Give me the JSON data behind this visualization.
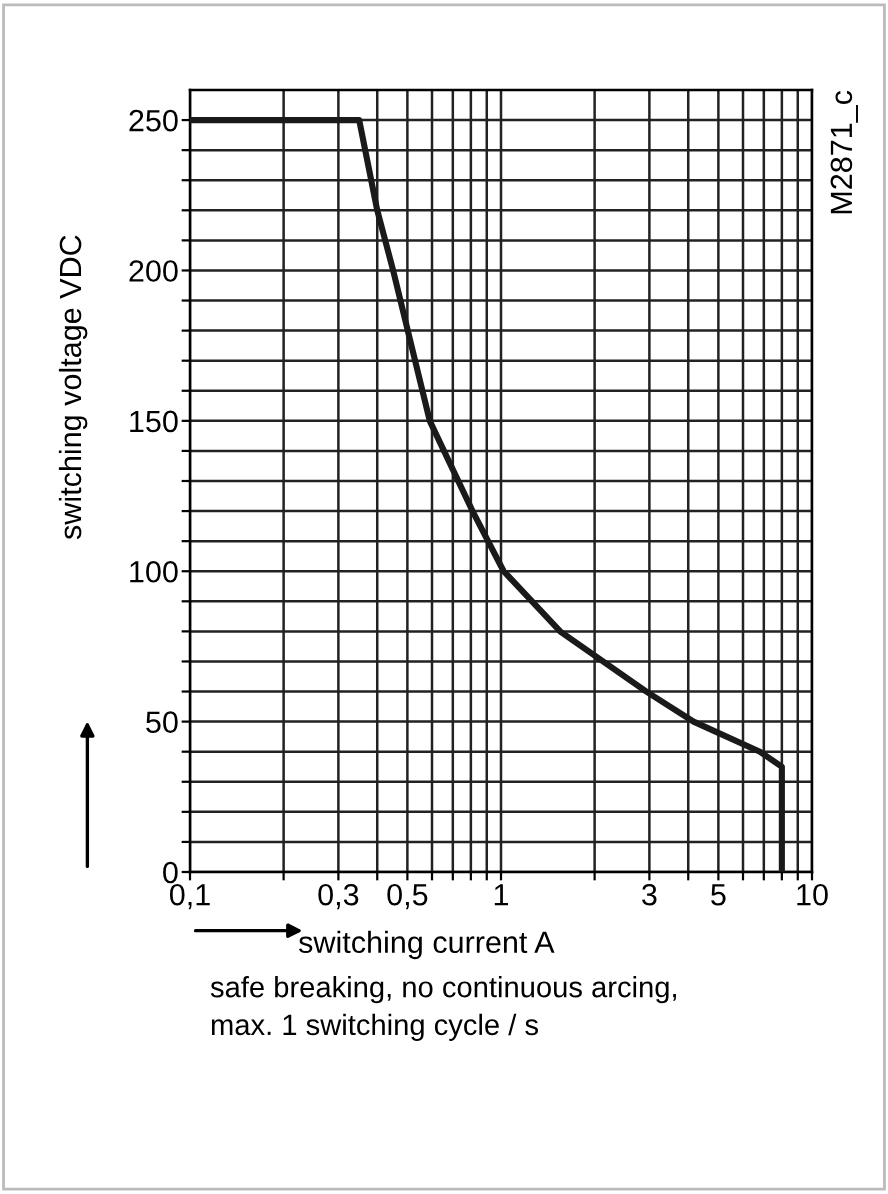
{
  "chart_data": {
    "type": "line",
    "xlabel": "switching current A",
    "ylabel": "switching voltage VDC",
    "x": [
      0.1,
      0.35,
      0.4,
      0.45,
      0.59,
      0.81,
      1.02,
      1.55,
      2.93,
      4.16,
      6.8,
      8,
      8
    ],
    "series": [
      {
        "color": "#1a1a1a",
        "values": [
          250,
          250,
          220,
          200,
          150,
          120,
          100,
          80,
          60,
          50,
          40,
          35,
          0
        ]
      }
    ],
    "log": "x",
    "xlim": [
      0.1,
      10
    ],
    "ylim": [
      0,
      260
    ],
    "xticks": [
      {
        "value": 0.1,
        "label": "0,1"
      },
      {
        "value": 0.2,
        "label": null
      },
      {
        "value": 0.3,
        "label": "0,3"
      },
      {
        "value": 0.4,
        "label": null
      },
      {
        "value": 0.5,
        "label": "0,5"
      },
      {
        "value": 0.6,
        "label": null
      },
      {
        "value": 0.7,
        "label": null
      },
      {
        "value": 0.8,
        "label": null
      },
      {
        "value": 0.9,
        "label": null
      },
      1,
      {
        "value": 2,
        "label": null
      },
      3,
      {
        "value": 4,
        "label": null
      },
      5,
      {
        "value": 6,
        "label": null
      },
      {
        "value": 7,
        "label": null
      },
      {
        "value": 8,
        "label": null
      },
      {
        "value": 9,
        "label": null
      },
      10
    ],
    "yticks": [
      0,
      {
        "value": 10,
        "label": null
      },
      {
        "value": 20,
        "label": null
      },
      {
        "value": 30,
        "label": null
      },
      {
        "value": 40,
        "label": null
      },
      50,
      {
        "value": 60,
        "label": null
      },
      {
        "value": 70,
        "label": null
      },
      {
        "value": 80,
        "label": null
      },
      {
        "value": 90,
        "label": null
      },
      100,
      {
        "value": 110,
        "label": null
      },
      {
        "value": 120,
        "label": null
      },
      {
        "value": 130,
        "label": null
      },
      {
        "value": 140,
        "label": null
      },
      150,
      {
        "value": 160,
        "label": null
      },
      {
        "value": 170,
        "label": null
      },
      {
        "value": 180,
        "label": null
      },
      {
        "value": 190,
        "label": null
      },
      200,
      {
        "value": 210,
        "label": null
      },
      {
        "value": 220,
        "label": null
      },
      {
        "value": 230,
        "label": null
      },
      {
        "value": 240,
        "label": null
      },
      250
    ],
    "grid": true,
    "marker": "none",
    "line_style": "solid",
    "annotations": [
      "M2871_c",
      "safe breaking, no continuous arcing,\nmax. 1 switching cycle / s"
    ]
  }
}
